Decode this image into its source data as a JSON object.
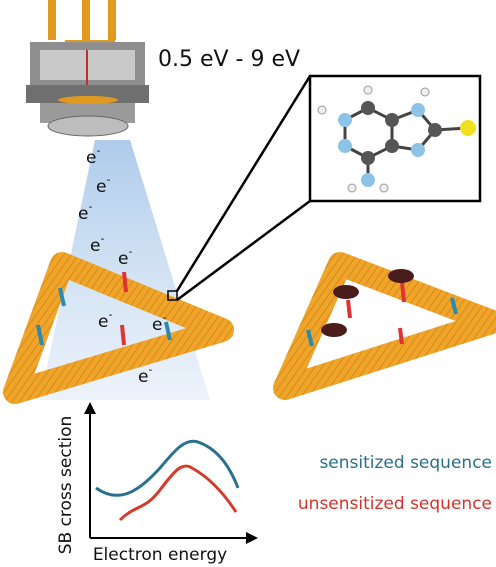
{
  "energy_range": "0.5 eV - 9 eV",
  "electron": {
    "base": "e",
    "charge": "-"
  },
  "plot": {
    "y_axis_label": "SB cross section",
    "x_axis_label": "Electron energy"
  },
  "legend": [
    "sensitized sequence",
    "unsensitized sequence"
  ]
}
